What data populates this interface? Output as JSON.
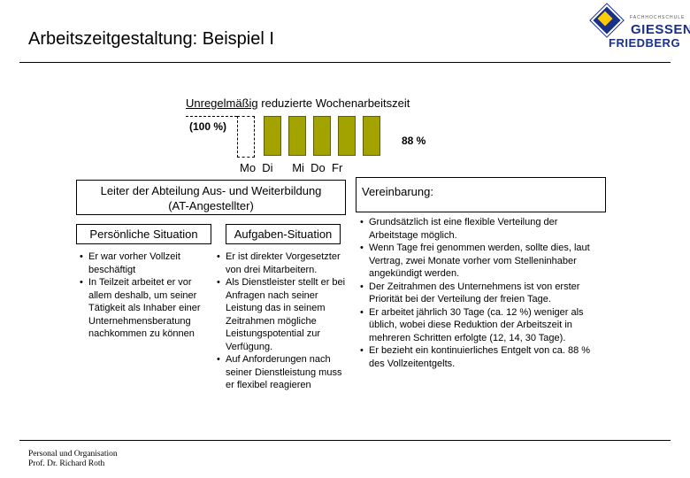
{
  "title": "Arbeitszeitgestaltung: Beispiel I",
  "logo": {
    "small_text": "FACHHOCHSCHULE",
    "line1": "GIESSEN",
    "line2": "FRIEDBERG"
  },
  "diagram": {
    "heading_underlined": "Unregelmäßig",
    "heading_rest": " reduzierte Wochenarbeitszeit",
    "label_100": "(100 %)",
    "label_88": "88 %",
    "days": "Mo  Di      Mi  Do  Fr",
    "bar_color": "#a3a300"
  },
  "boxes": {
    "leiter_line1": "Leiter der Abteilung Aus- und Weiterbildung",
    "leiter_line2": "(AT-Angestellter)",
    "persoenlich": "Persönliche Situation",
    "aufgaben": "Aufgaben-Situation",
    "vereinbarung": "Vereinbarung:"
  },
  "persoenlich_items": [
    "Er war vorher Vollzeit beschäftigt",
    "In Teilzeit arbeitet er vor allem deshalb, um seiner Tätigkeit als Inhaber einer Unternehmensberatung nachkommen zu können"
  ],
  "aufgaben_items": [
    "Er ist direkter Vorgesetzter von drei Mitarbeitern.",
    "Als Dienstleister stellt er bei Anfragen nach seiner Leistung das in seinem Zeitrahmen mögliche Leistungspotential zur Verfügung.",
    "Auf Anforderungen nach seiner Dienstleistung muss er flexibel reagieren"
  ],
  "vereinbarung_items": [
    "Grundsätzlich ist eine flexible Verteilung der Arbeitstage möglich.",
    "Wenn Tage frei genommen werden, sollte dies, laut Vertrag, zwei Monate vorher vom Stelleninhaber angekündigt werden.",
    "Der Zeitrahmen des Unternehmens ist von erster Priorität bei der Verteilung der freien Tage.",
    "Er arbeitet jährlich 30 Tage (ca. 12 %) weniger als üblich, wobei diese Reduktion der Arbeitszeit in mehreren Schritten erfolgte (12, 14, 30 Tage).",
    "Er bezieht ein kontinuierliches Entgelt von ca. 88 % des Vollzeitentgelts."
  ],
  "footer": {
    "line1": "Personal und Organisation",
    "line2": "Prof. Dr. Richard Roth"
  }
}
